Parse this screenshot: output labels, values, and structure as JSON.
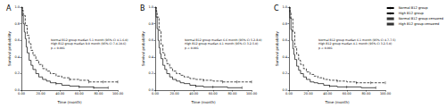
{
  "chart_data": [
    {
      "type": "line",
      "title": "A",
      "x_label": "Time (month)",
      "y_label": "Survival probability",
      "annotations": [
        "Normal B12 group median 5.1 month (95% CI 4.1-6.0)",
        "High B12 group median 9.0 month (95% CI 7.4-10.6)",
        "p < 0.001"
      ],
      "xlim": [
        0,
        100
      ],
      "xticks": [
        {
          "value": 0,
          "label": "0.00"
        },
        {
          "value": 20,
          "label": "20.00"
        },
        {
          "value": 40,
          "label": "40.00"
        },
        {
          "value": 60,
          "label": "60.00"
        },
        {
          "value": 80,
          "label": "80.00"
        },
        {
          "value": 100,
          "label": "100.00"
        }
      ],
      "ylim": [
        0,
        1
      ],
      "yticks": [
        {
          "value": 0,
          "label": "0.0"
        },
        {
          "value": 0.2,
          "label": "0.2"
        },
        {
          "value": 0.4,
          "label": "0.4"
        },
        {
          "value": 0.6,
          "label": "0.6"
        },
        {
          "value": 0.8,
          "label": "0.8"
        },
        {
          "value": 1,
          "label": "1.0"
        }
      ],
      "grid": false,
      "series": [
        {
          "name": "Normal B12 group",
          "type": "line",
          "color": "#000000",
          "line_style": "solid",
          "x": [
            0,
            1,
            2,
            3,
            4,
            5,
            6,
            8,
            10,
            12,
            15,
            18,
            22,
            26,
            30,
            36,
            42,
            50,
            60,
            75,
            90
          ],
          "values": [
            1,
            0.9,
            0.8,
            0.7,
            0.62,
            0.52,
            0.45,
            0.36,
            0.3,
            0.25,
            0.2,
            0.16,
            0.13,
            0.11,
            0.09,
            0.08,
            0.06,
            0.05,
            0.04,
            0.03,
            0.03
          ]
        },
        {
          "name": "High B12 group",
          "type": "line",
          "color": "#000000",
          "line_style": "dashed",
          "x": [
            0,
            1,
            2,
            4,
            6,
            8,
            10,
            12,
            15,
            18,
            22,
            26,
            30,
            36,
            42,
            50,
            60,
            70,
            85,
            100
          ],
          "values": [
            1,
            0.96,
            0.9,
            0.78,
            0.66,
            0.56,
            0.48,
            0.42,
            0.36,
            0.31,
            0.26,
            0.23,
            0.2,
            0.17,
            0.15,
            0.13,
            0.12,
            0.1,
            0.1,
            0.1
          ]
        },
        {
          "name": "Normal B12 group censored",
          "type": "scatter",
          "color": "#000000",
          "marker": "vline",
          "x": [
            36,
            60,
            75,
            90
          ],
          "values": [
            0.08,
            0.04,
            0.03,
            0.03
          ]
        },
        {
          "name": "High B12 group censored",
          "type": "scatter",
          "color": "#000000",
          "marker": "vline",
          "x": [
            50,
            70,
            85,
            100
          ],
          "values": [
            0.13,
            0.1,
            0.1,
            0.1
          ]
        }
      ]
    },
    {
      "type": "line",
      "title": "B",
      "x_label": "Time (month)",
      "y_label": "Survival probability",
      "annotations": [
        "Normal B12 group median 6.6 month (95% CI 5.2-8.0)",
        "High B12 group median 4.1 month (95% CI 3.2-5.0)",
        "p < 0.001"
      ],
      "xlim": [
        0,
        100
      ],
      "xticks": [
        {
          "value": 0,
          "label": "0.00"
        },
        {
          "value": 20,
          "label": "20.00"
        },
        {
          "value": 40,
          "label": "40.00"
        },
        {
          "value": 60,
          "label": "60.00"
        },
        {
          "value": 80,
          "label": "80.00"
        },
        {
          "value": 100,
          "label": "100.00"
        }
      ],
      "ylim": [
        0,
        1
      ],
      "yticks": [
        {
          "value": 0,
          "label": "0.0"
        },
        {
          "value": 0.2,
          "label": "0.2"
        },
        {
          "value": 0.4,
          "label": "0.4"
        },
        {
          "value": 0.6,
          "label": "0.6"
        },
        {
          "value": 0.8,
          "label": "0.8"
        },
        {
          "value": 1,
          "label": "1.0"
        }
      ],
      "grid": false,
      "series": [
        {
          "name": "Normal B12 group",
          "type": "line",
          "color": "#000000",
          "line_style": "dashed",
          "x": [
            0,
            1,
            2,
            4,
            6,
            8,
            10,
            12,
            15,
            18,
            22,
            26,
            30,
            36,
            42,
            50,
            60,
            70,
            85,
            100
          ],
          "values": [
            1,
            0.95,
            0.88,
            0.72,
            0.55,
            0.45,
            0.38,
            0.32,
            0.27,
            0.23,
            0.2,
            0.18,
            0.16,
            0.14,
            0.13,
            0.12,
            0.11,
            0.1,
            0.1,
            0.1
          ]
        },
        {
          "name": "High B12 group",
          "type": "line",
          "color": "#000000",
          "line_style": "solid",
          "x": [
            0,
            1,
            2,
            3,
            4,
            5,
            6,
            8,
            10,
            12,
            15,
            18,
            22,
            26,
            30,
            36,
            42,
            50,
            60,
            75,
            90
          ],
          "values": [
            1,
            0.88,
            0.74,
            0.6,
            0.51,
            0.44,
            0.38,
            0.3,
            0.25,
            0.2,
            0.16,
            0.13,
            0.11,
            0.09,
            0.08,
            0.06,
            0.05,
            0.04,
            0.04,
            0.03,
            0.03
          ]
        },
        {
          "name": "Normal B12 group censored",
          "type": "scatter",
          "color": "#000000",
          "marker": "vline",
          "x": [
            50,
            70,
            85,
            100
          ],
          "values": [
            0.12,
            0.1,
            0.1,
            0.1
          ]
        },
        {
          "name": "High B12 group censored",
          "type": "scatter",
          "color": "#000000",
          "marker": "vline",
          "x": [
            42,
            60,
            90
          ],
          "values": [
            0.05,
            0.04,
            0.03
          ]
        }
      ]
    },
    {
      "type": "line",
      "title": "C",
      "legend": "right",
      "x_label": "Time (month)",
      "y_label": "Survival probability",
      "annotations": [
        "Normal B12 group median 6.1 month (95% CI 4.7-7.5)",
        "High B12 group median 4.1 month (95% CI 3.2-5.0)",
        "p < 0.001"
      ],
      "xlim": [
        0,
        100
      ],
      "xticks": [
        {
          "value": 0,
          "label": "0.00"
        },
        {
          "value": 20,
          "label": "20.00"
        },
        {
          "value": 40,
          "label": "40.00"
        },
        {
          "value": 60,
          "label": "60.00"
        },
        {
          "value": 80,
          "label": "80.00"
        },
        {
          "value": 100,
          "label": "100.00"
        }
      ],
      "ylim": [
        0,
        1
      ],
      "yticks": [
        {
          "value": 0,
          "label": "0.0"
        },
        {
          "value": 0.2,
          "label": "0.2"
        },
        {
          "value": 0.4,
          "label": "0.4"
        },
        {
          "value": 0.6,
          "label": "0.6"
        },
        {
          "value": 0.8,
          "label": "0.8"
        },
        {
          "value": 1,
          "label": "1.0"
        }
      ],
      "grid": false,
      "series": [
        {
          "name": "Normal B12 group",
          "type": "line",
          "color": "#000000",
          "line_style": "dashed",
          "x": [
            0,
            1,
            2,
            4,
            6,
            8,
            10,
            12,
            15,
            18,
            22,
            26,
            30,
            36,
            42,
            50,
            60,
            70,
            85,
            100
          ],
          "values": [
            1,
            0.94,
            0.86,
            0.7,
            0.52,
            0.43,
            0.36,
            0.31,
            0.26,
            0.22,
            0.19,
            0.17,
            0.15,
            0.13,
            0.12,
            0.11,
            0.1,
            0.09,
            0.09,
            0.09
          ]
        },
        {
          "name": "High B12 group",
          "type": "line",
          "color": "#000000",
          "line_style": "solid",
          "x": [
            0,
            1,
            2,
            3,
            4,
            5,
            6,
            8,
            10,
            12,
            15,
            18,
            22,
            26,
            30,
            36,
            42,
            50,
            60,
            75,
            90
          ],
          "values": [
            1,
            0.87,
            0.73,
            0.6,
            0.5,
            0.43,
            0.37,
            0.29,
            0.24,
            0.2,
            0.16,
            0.13,
            0.1,
            0.09,
            0.08,
            0.06,
            0.05,
            0.04,
            0.04,
            0.03,
            0.03
          ]
        },
        {
          "name": "Normal B12 group censored",
          "type": "scatter",
          "color": "#000000",
          "marker": "vline",
          "x": [
            50,
            70,
            85,
            100
          ],
          "values": [
            0.11,
            0.09,
            0.09,
            0.09
          ]
        },
        {
          "name": "High B12 group censored",
          "type": "scatter",
          "color": "#000000",
          "marker": "vline",
          "x": [
            42,
            60,
            90
          ],
          "values": [
            0.05,
            0.04,
            0.03
          ]
        }
      ]
    }
  ]
}
